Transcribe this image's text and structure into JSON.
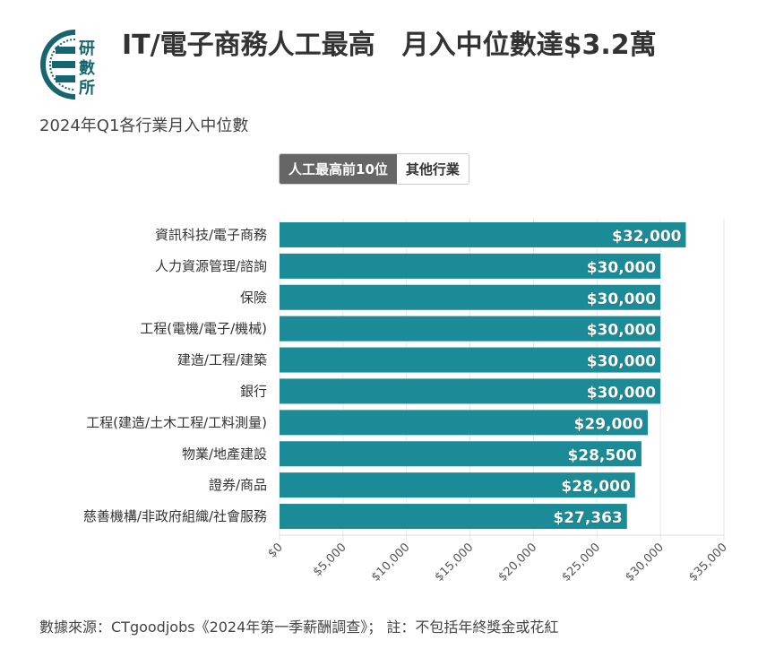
{
  "header": {
    "title": "IT/電子商務人工最高　月入中位數達$3.2萬",
    "subtitle": "2024年Q1各行業月入中位數",
    "logo_text": "研數所"
  },
  "tabs": [
    {
      "label": "人工最高前10位",
      "active": true
    },
    {
      "label": "其他行業",
      "active": false
    }
  ],
  "footer": "數據來源：CTgoodjobs《2024年第一季薪酬調查》； 註：不包括年終獎金或花紅",
  "colors": {
    "bar": "#1a8b97",
    "label": "#ffffff"
  },
  "chart_data": {
    "type": "bar",
    "orientation": "horizontal",
    "categories": [
      "資訊科技/電子商務",
      "人力資源管理/諮詢",
      "保險",
      "工程(電機/電子/機械)",
      "建造/工程/建築",
      "銀行",
      "工程(建造/土木工程/工料測量)",
      "物業/地產建設",
      "證券/商品",
      "慈善機構/非政府組織/社會服務"
    ],
    "values": [
      32000,
      30000,
      30000,
      30000,
      30000,
      30000,
      29000,
      28500,
      28000,
      27363
    ],
    "data_labels": [
      "$32,000",
      "$30,000",
      "$30,000",
      "$30,000",
      "$30,000",
      "$30,000",
      "$29,000",
      "$28,500",
      "$28,000",
      "$27,363"
    ],
    "xlim": [
      0,
      35000
    ],
    "xticks": [
      "$0",
      "$5,000",
      "$10,000",
      "$15,000",
      "$20,000",
      "$25,000",
      "$30,000",
      "$35,000"
    ],
    "grid": true
  }
}
